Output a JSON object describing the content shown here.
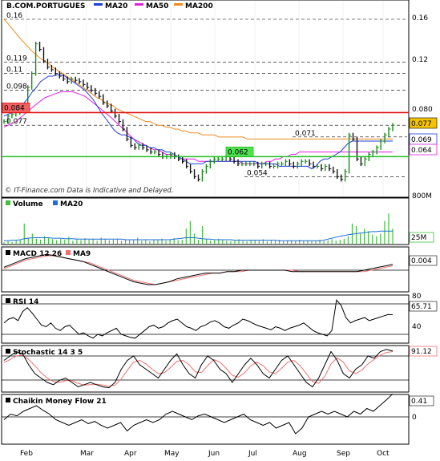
{
  "chart_data": [
    {
      "type": "line",
      "symbol": "B.COM.PORTUGUES",
      "title": "B.COM.PORTUGUES",
      "legend": [
        {
          "name": "MA20",
          "color": "#1f3fd9"
        },
        {
          "name": "MA50",
          "color": "#e020e0"
        },
        {
          "name": "MA200",
          "color": "#f08a20"
        }
      ],
      "watermark": "© IT-Finance.com   Data is Indicative and Delayed.",
      "x_labels": [
        "Feb",
        "Mar",
        "Apr",
        "May",
        "Jun",
        "Jul",
        "Aug",
        "Sep",
        "Oct"
      ],
      "yticks": [
        "0.16",
        "0.12",
        "0.080",
        "800M"
      ],
      "y_axis": {
        "scale": "log",
        "range": [
          0.045,
          0.165
        ]
      },
      "price_levels": [
        "0.16",
        "0.119",
        "0.11",
        "0.098",
        "0.084",
        "0.077",
        "0.071",
        "0.062",
        "0.054"
      ],
      "support_resistance": [
        {
          "value": 0.084,
          "color": "#e01010"
        },
        {
          "value": 0.062,
          "color": "#20c020"
        }
      ],
      "last_values": [
        {
          "name": "close",
          "value": "0.077"
        },
        {
          "name": "MA20",
          "value": "0.069"
        },
        {
          "name": "MA50",
          "value": "0.064"
        }
      ],
      "x": [
        0,
        5,
        10,
        15,
        20,
        25,
        30,
        35,
        40,
        45,
        50,
        55,
        60,
        65,
        70,
        75,
        80,
        85,
        90,
        95,
        100,
        105,
        110,
        115,
        120,
        125,
        130,
        135,
        140,
        145,
        150,
        155,
        160,
        165,
        170,
        175,
        180,
        185,
        190,
        195,
        200,
        205,
        210,
        215,
        220,
        225,
        230,
        235,
        240,
        245,
        250,
        255,
        260,
        265,
        270,
        275,
        280,
        285,
        290,
        295,
        300,
        305,
        310,
        315,
        320,
        325,
        330,
        335,
        340,
        345,
        350,
        355,
        360,
        365,
        370,
        375,
        380,
        385,
        390,
        395,
        400,
        405,
        410,
        415,
        420,
        425,
        430,
        435,
        440,
        445,
        450,
        455,
        460,
        465,
        470,
        475,
        480
      ],
      "price": [
        0.079,
        0.082,
        0.083,
        0.084,
        0.085,
        0.086,
        0.1,
        0.11,
        0.135,
        0.13,
        0.12,
        0.115,
        0.113,
        0.11,
        0.108,
        0.106,
        0.104,
        0.106,
        0.105,
        0.104,
        0.102,
        0.1,
        0.098,
        0.096,
        0.094,
        0.09,
        0.088,
        0.085,
        0.082,
        0.079,
        0.075,
        0.07,
        0.067,
        0.066,
        0.067,
        0.066,
        0.065,
        0.064,
        0.064,
        0.063,
        0.062,
        0.062,
        0.063,
        0.062,
        0.061,
        0.06,
        0.058,
        0.056,
        0.054,
        0.053,
        0.056,
        0.058,
        0.06,
        0.061,
        0.061,
        0.061,
        0.062,
        0.061,
        0.06,
        0.059,
        0.059,
        0.059,
        0.059,
        0.059,
        0.058,
        0.059,
        0.059,
        0.058,
        0.058,
        0.059,
        0.059,
        0.06,
        0.059,
        0.058,
        0.059,
        0.06,
        0.06,
        0.059,
        0.058,
        0.058,
        0.057,
        0.058,
        0.057,
        0.056,
        0.054,
        0.053,
        0.056,
        0.072,
        0.07,
        0.061,
        0.059,
        0.061,
        0.063,
        0.064,
        0.066,
        0.069,
        0.072,
        0.075,
        0.077
      ],
      "ma20": [
        0.082,
        0.083,
        0.084,
        0.086,
        0.088,
        0.09,
        0.093,
        0.097,
        0.1,
        0.104,
        0.106,
        0.108,
        0.108,
        0.109,
        0.109,
        0.108,
        0.106,
        0.104,
        0.102,
        0.1,
        0.098,
        0.095,
        0.092,
        0.088,
        0.084,
        0.081,
        0.078,
        0.075,
        0.073,
        0.072,
        0.072,
        0.071,
        0.07,
        0.068,
        0.067,
        0.067,
        0.066,
        0.066,
        0.065,
        0.065,
        0.064,
        0.064,
        0.063,
        0.062,
        0.061,
        0.06,
        0.059,
        0.059,
        0.059,
        0.059,
        0.06,
        0.06,
        0.06,
        0.06,
        0.06,
        0.06,
        0.06,
        0.06,
        0.06,
        0.06,
        0.06,
        0.06,
        0.06,
        0.059,
        0.059,
        0.059,
        0.059,
        0.059,
        0.058,
        0.058,
        0.058,
        0.058,
        0.058,
        0.058,
        0.058,
        0.058,
        0.057,
        0.058,
        0.06,
        0.061,
        0.061,
        0.062,
        0.063,
        0.064,
        0.066,
        0.068,
        0.069,
        0.069,
        0.069,
        0.069,
        0.069,
        0.069,
        0.069,
        0.069,
        0.069,
        0.069,
        0.069
      ],
      "ma50": [
        0.076,
        0.077,
        0.078,
        0.079,
        0.081,
        0.083,
        0.085,
        0.087,
        0.089,
        0.091,
        0.093,
        0.094,
        0.095,
        0.096,
        0.097,
        0.097,
        0.097,
        0.097,
        0.096,
        0.095,
        0.094,
        0.092,
        0.09,
        0.088,
        0.086,
        0.084,
        0.082,
        0.08,
        0.078,
        0.076,
        0.074,
        0.072,
        0.07,
        0.069,
        0.068,
        0.067,
        0.066,
        0.065,
        0.065,
        0.064,
        0.063,
        0.063,
        0.062,
        0.062,
        0.061,
        0.061,
        0.061,
        0.061,
        0.06,
        0.06,
        0.06,
        0.06,
        0.06,
        0.06,
        0.06,
        0.06,
        0.06,
        0.06,
        0.06,
        0.059,
        0.059,
        0.059,
        0.059,
        0.059,
        0.059,
        0.06,
        0.06,
        0.061,
        0.061,
        0.062,
        0.062,
        0.063,
        0.063,
        0.064,
        0.064,
        0.064,
        0.064,
        0.064,
        0.064,
        0.064,
        0.064,
        0.064,
        0.064,
        0.064,
        0.064,
        0.064,
        0.064,
        0.064,
        0.064,
        0.064,
        0.064,
        0.064,
        0.064,
        0.064,
        0.064,
        0.064,
        0.064
      ],
      "ma200": [
        0.16,
        0.155,
        0.15,
        0.145,
        0.14,
        0.136,
        0.132,
        0.128,
        0.125,
        0.122,
        0.12,
        0.118,
        0.115,
        0.113,
        0.111,
        0.109,
        0.107,
        0.105,
        0.103,
        0.101,
        0.099,
        0.097,
        0.095,
        0.093,
        0.092,
        0.09,
        0.089,
        0.088,
        0.086,
        0.085,
        0.084,
        0.083,
        0.082,
        0.081,
        0.08,
        0.079,
        0.079,
        0.078,
        0.077,
        0.077,
        0.076,
        0.076,
        0.075,
        0.075,
        0.074,
        0.074,
        0.073,
        0.073,
        0.073,
        0.072,
        0.072,
        0.072,
        0.072,
        0.071,
        0.071,
        0.071,
        0.071,
        0.071,
        0.071,
        0.071,
        0.07,
        0.07,
        0.07,
        0.07,
        0.07,
        0.07,
        0.07,
        0.07,
        0.07,
        0.07,
        0.07,
        0.07,
        0.07,
        0.07,
        0.07,
        0.07,
        0.07,
        0.07,
        0.07,
        0.07,
        0.07,
        0.07,
        0.07,
        0.07,
        0.07,
        0.07,
        0.07,
        0.07,
        0.07,
        0.07,
        0.07,
        0.07,
        0.07,
        0.07,
        0.07,
        0.07,
        0.07
      ]
    },
    {
      "type": "bar",
      "title": "Volume",
      "legend": [
        {
          "name": "Volume",
          "color": "#40c040"
        },
        {
          "name": "MA20",
          "color": "#1f6fd9"
        }
      ],
      "last_value": "25M",
      "y_range": [
        0,
        800
      ],
      "values": [
        3,
        5,
        4,
        6,
        8,
        40,
        12,
        20,
        10,
        8,
        15,
        12,
        9,
        7,
        10,
        8,
        14,
        6,
        9,
        7,
        11,
        8,
        10,
        6,
        12,
        9,
        7,
        8,
        10,
        6,
        9,
        7,
        8,
        12,
        6,
        9,
        5,
        8,
        7,
        10,
        6,
        9,
        11,
        7,
        8,
        30,
        45,
        20,
        8,
        35,
        9,
        6,
        7,
        10,
        8,
        6,
        5,
        7,
        9,
        6,
        5,
        8,
        7,
        6,
        9,
        5,
        7,
        6,
        8,
        5,
        7,
        6,
        5,
        8,
        6,
        7,
        5,
        6,
        8,
        5,
        7,
        9,
        6,
        8,
        10,
        15,
        40,
        35,
        20,
        30,
        25,
        18,
        15,
        20,
        45,
        60,
        30
      ],
      "ma20": [
        6,
        6,
        7,
        7,
        8,
        10,
        11,
        12,
        12,
        12,
        12,
        12,
        11,
        11,
        11,
        10,
        10,
        10,
        9,
        9,
        9,
        9,
        9,
        9,
        9,
        9,
        9,
        9,
        9,
        9,
        8,
        8,
        8,
        8,
        8,
        8,
        8,
        8,
        8,
        8,
        8,
        8,
        9,
        10,
        11,
        12,
        12,
        12,
        11,
        10,
        9,
        9,
        8,
        8,
        8,
        8,
        8,
        7,
        7,
        7,
        7,
        7,
        7,
        7,
        7,
        7,
        7,
        7,
        6,
        6,
        6,
        6,
        6,
        6,
        6,
        6,
        6,
        6,
        6,
        7,
        9,
        11,
        13,
        15,
        16,
        18,
        19,
        20,
        21,
        22,
        23,
        24,
        24,
        25,
        25,
        25,
        25
      ]
    },
    {
      "type": "line",
      "title": "MACD 12 26",
      "legend": [
        {
          "name": "MACD 12 26",
          "color": "#000000"
        },
        {
          "name": "MA9",
          "color": "#f07070"
        }
      ],
      "last_value": "0.004",
      "values": [
        0.002,
        0.004,
        0.006,
        0.008,
        0.009,
        0.01,
        0.011,
        0.01,
        0.009,
        0.008,
        0.007,
        0.006,
        0.004,
        0.002,
        0.0,
        -0.002,
        -0.004,
        -0.006,
        -0.008,
        -0.009,
        -0.01,
        -0.01,
        -0.009,
        -0.008,
        -0.006,
        -0.005,
        -0.004,
        -0.003,
        -0.002,
        -0.002,
        -0.002,
        -0.001,
        -0.001,
        0.0,
        0.0,
        0.0,
        0.0,
        0.0,
        0.0,
        0.0,
        -0.001,
        -0.001,
        -0.001,
        -0.001,
        -0.001,
        -0.001,
        -0.001,
        -0.001,
        -0.001,
        -0.001,
        0.0,
        0.001,
        0.002,
        0.003,
        0.004
      ],
      "signal": [
        0.001,
        0.003,
        0.005,
        0.007,
        0.008,
        0.009,
        0.01,
        0.01,
        0.009,
        0.008,
        0.007,
        0.006,
        0.005,
        0.003,
        0.001,
        -0.001,
        -0.003,
        -0.005,
        -0.007,
        -0.008,
        -0.009,
        -0.01,
        -0.009,
        -0.008,
        -0.007,
        -0.006,
        -0.005,
        -0.004,
        -0.003,
        -0.002,
        -0.002,
        -0.001,
        -0.001,
        -0.001,
        0.0,
        0.0,
        0.0,
        0.0,
        0.0,
        0.0,
        0.0,
        -0.001,
        -0.001,
        -0.001,
        -0.001,
        -0.001,
        -0.001,
        -0.001,
        -0.001,
        -0.001,
        -0.001,
        0.0,
        0.001,
        0.002,
        0.003
      ]
    },
    {
      "type": "line",
      "title": "RSI 14",
      "last_value": "65.71",
      "levels": [
        "80",
        "40"
      ],
      "y_range": [
        20,
        100
      ],
      "values": [
        55,
        60,
        62,
        58,
        70,
        75,
        68,
        60,
        52,
        50,
        55,
        48,
        45,
        50,
        52,
        46,
        40,
        42,
        38,
        35,
        40,
        38,
        42,
        45,
        48,
        40,
        38,
        36,
        35,
        40,
        45,
        50,
        52,
        48,
        50,
        55,
        58,
        60,
        55,
        50,
        48,
        45,
        50,
        52,
        56,
        58,
        55,
        50,
        48,
        52,
        55,
        60,
        58,
        55,
        52,
        50,
        48,
        46,
        50,
        48,
        45,
        48,
        50,
        52,
        55,
        50,
        45,
        42,
        40,
        38,
        45,
        85,
        78,
        62,
        55,
        58,
        60,
        62,
        58,
        60,
        62,
        64,
        66,
        65.71
      ]
    },
    {
      "type": "line",
      "title": "Stochastic 14 3 5",
      "last_value": "91.12",
      "y_range": [
        0,
        100
      ],
      "k": [
        70,
        80,
        90,
        85,
        60,
        40,
        30,
        20,
        15,
        25,
        30,
        20,
        10,
        15,
        20,
        15,
        10,
        8,
        20,
        50,
        70,
        80,
        60,
        50,
        40,
        30,
        50,
        70,
        85,
        60,
        40,
        30,
        60,
        80,
        70,
        50,
        40,
        20,
        40,
        60,
        75,
        60,
        40,
        30,
        50,
        70,
        80,
        60,
        40,
        20,
        10,
        30,
        60,
        90,
        70,
        40,
        30,
        50,
        60,
        80,
        75,
        90,
        95,
        91.12
      ],
      "d": [
        65,
        72,
        80,
        82,
        72,
        58,
        42,
        30,
        22,
        20,
        24,
        24,
        18,
        14,
        15,
        16,
        14,
        11,
        14,
        28,
        48,
        66,
        70,
        62,
        50,
        40,
        42,
        54,
        68,
        70,
        60,
        44,
        42,
        58,
        72,
        66,
        52,
        36,
        32,
        42,
        58,
        66,
        58,
        44,
        40,
        52,
        66,
        70,
        58,
        40,
        22,
        18,
        34,
        62,
        76,
        66,
        46,
        40,
        48,
        62,
        72,
        82,
        88,
        90
      ]
    },
    {
      "type": "line",
      "title": "Chaikin Money Flow 21",
      "last_value": "0.41",
      "zero_label": "0",
      "values": [
        -0.05,
        0.05,
        0.02,
        0.1,
        0.15,
        0.2,
        0.12,
        0.05,
        -0.05,
        -0.1,
        -0.15,
        -0.1,
        -0.05,
        -0.12,
        -0.08,
        -0.15,
        -0.2,
        -0.15,
        -0.1,
        -0.25,
        -0.15,
        -0.1,
        -0.05,
        -0.1,
        -0.05,
        0.05,
        0.1,
        0.05,
        0.0,
        -0.05,
        0.02,
        0.05,
        0.0,
        -0.05,
        -0.1,
        -0.05,
        0.0,
        0.05,
        -0.05,
        -0.1,
        -0.15,
        -0.1,
        -0.2,
        -0.15,
        -0.1,
        -0.3,
        -0.2,
        0.0,
        0.05,
        0.1,
        0.05,
        0.1,
        0.05,
        0.0,
        0.1,
        0.05,
        0.15,
        0.1,
        0.2,
        0.3,
        0.41
      ]
    }
  ]
}
